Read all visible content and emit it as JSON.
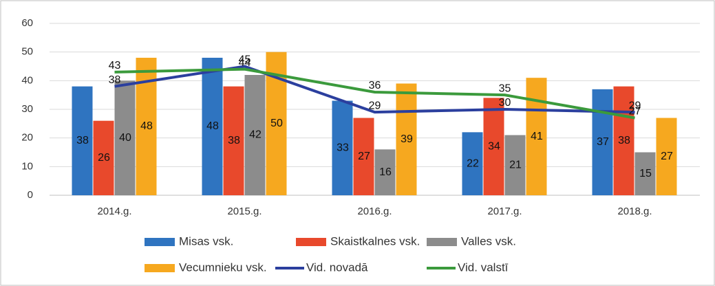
{
  "chart_data": {
    "type": "bar",
    "categories": [
      "2014.g.",
      "2015.g.",
      "2016.g.",
      "2017.g.",
      "2018.g."
    ],
    "series": [
      {
        "name": "Misas vsk.",
        "type": "bar",
        "color": "#2f74c0",
        "values": [
          38,
          48,
          33,
          22,
          37
        ]
      },
      {
        "name": "Skaistkalnes vsk.",
        "type": "bar",
        "color": "#e8492c",
        "values": [
          26,
          38,
          27,
          34,
          38
        ]
      },
      {
        "name": "Valles vsk.",
        "type": "bar",
        "color": "#8c8c8c",
        "values": [
          40,
          42,
          16,
          21,
          15
        ]
      },
      {
        "name": "Vecumnieku vsk.",
        "type": "bar",
        "color": "#f6a81f",
        "values": [
          48,
          50,
          39,
          41,
          27
        ]
      },
      {
        "name": "Vid. novadā",
        "type": "line",
        "color": "#2b3f9e",
        "values": [
          38,
          45,
          29,
          30,
          29
        ]
      },
      {
        "name": "Vid. valstī",
        "type": "line",
        "color": "#3b9a3c",
        "values": [
          43,
          44,
          36,
          35,
          27
        ]
      }
    ],
    "ylim": [
      0,
      60
    ],
    "yticks": [
      0,
      10,
      20,
      30,
      40,
      50,
      60
    ],
    "grid": true
  }
}
